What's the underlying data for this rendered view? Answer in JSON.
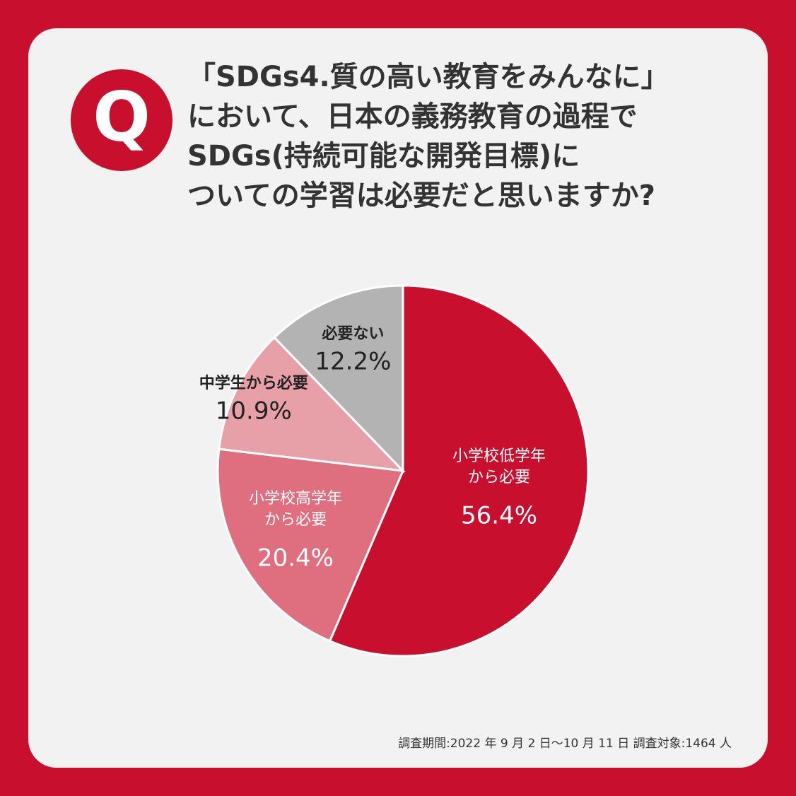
{
  "badge": "Q",
  "chart_data": {
    "type": "pie",
    "title": "「SDGs4.質の高い教育をみんなに」\nにおいて、日本の義務教育の過程で\nSDGs(持続可能な開発目標)に\nついての学習は必要だと思いますか?",
    "categories": [
      "小学校低学年\nから必要",
      "小学校高学年\nから必要",
      "中学生から必要",
      "必要ない"
    ],
    "values": [
      56.4,
      20.4,
      10.9,
      12.2
    ],
    "value_labels": [
      "56.4%",
      "20.4%",
      "10.9%",
      "12.2%"
    ],
    "colors": [
      "#c8102e",
      "#df6e7e",
      "#e8a0a8",
      "#b3b3b3"
    ]
  },
  "footnote": "調査期間:2022 年 9 月 2 日〜10 月 11 日 調査対象:1464 人"
}
